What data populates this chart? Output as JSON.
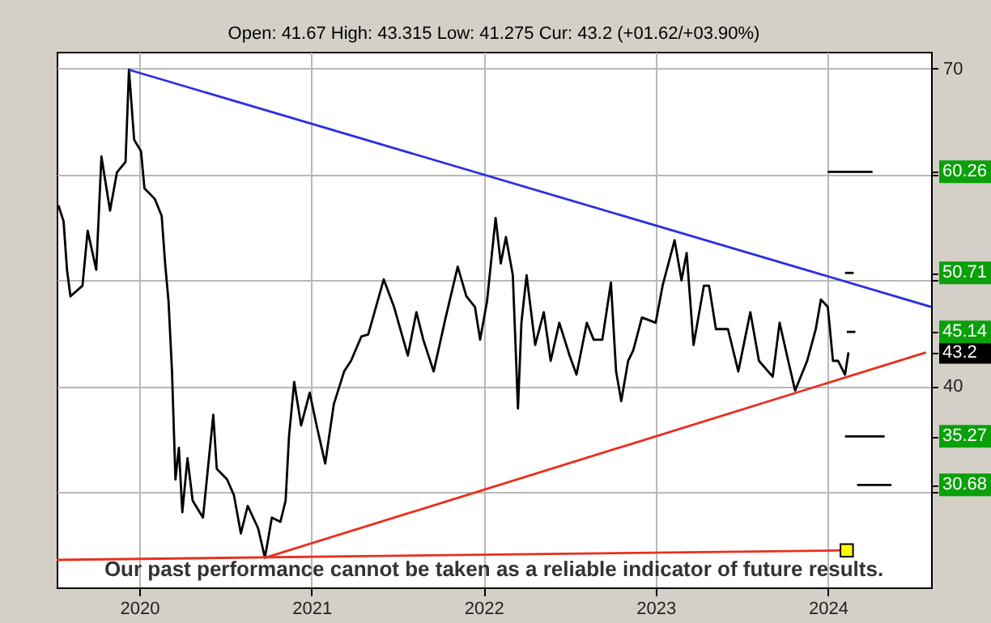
{
  "chart_data": {
    "type": "line",
    "title": "Open: 41.67 High: 43.315 Low: 41.275 Cur: 43.2 (+01.62/+03.90%)",
    "annotations": [
      "Our past performance cannot be taken as a reliable indicator of future results."
    ],
    "xlim": [
      2019.52,
      2024.6
    ],
    "xticks": [
      2020,
      2021,
      2022,
      2023,
      2024
    ],
    "ylim": [
      21,
      71.6
    ],
    "yticks": [
      {
        "value": 30,
        "label": null
      },
      {
        "value": 30.68,
        "label": "30.68"
      },
      {
        "value": 35.27,
        "label": "35.27"
      },
      40,
      {
        "value": 43.2,
        "label": "43.2"
      },
      {
        "value": 45.14,
        "label": "45.14"
      },
      {
        "value": 50,
        "label": null
      },
      {
        "value": 50.71,
        "label": "50.71"
      },
      {
        "value": 60,
        "label": null
      },
      {
        "value": 60.26,
        "label": "60.26"
      },
      70
    ],
    "grid": true,
    "marker": "none",
    "line_style": "solid",
    "series": [
      {
        "color": "#000000",
        "x": [
          2019.53,
          2019.56,
          2019.58,
          2019.6,
          2019.67,
          2019.7,
          2019.75,
          2019.78,
          2019.83,
          2019.87,
          2019.92,
          2019.94,
          2019.97,
          2020.01,
          2020.03,
          2020.09,
          2020.13,
          2020.15,
          2020.17,
          2020.19,
          2020.21,
          2020.23,
          2020.25,
          2020.28,
          2020.31,
          2020.37,
          2020.43,
          2020.45,
          2020.51,
          2020.55,
          2020.59,
          2020.63,
          2020.69,
          2020.73,
          2020.77,
          2020.82,
          2020.85,
          2020.87,
          2020.9,
          2020.94,
          2020.99,
          2021.03,
          2021.08,
          2021.13,
          2021.19,
          2021.23,
          2021.29,
          2021.33,
          2021.42,
          2021.48,
          2021.56,
          2021.61,
          2021.65,
          2021.71,
          2021.78,
          2021.85,
          2021.9,
          2021.95,
          2021.98,
          2022.02,
          2022.07,
          2022.1,
          2022.13,
          2022.17,
          2022.2,
          2022.22,
          2022.25,
          2022.3,
          2022.35,
          2022.39,
          2022.44,
          2022.5,
          2022.54,
          2022.6,
          2022.64,
          2022.69,
          2022.74,
          2022.77,
          2022.8,
          2022.84,
          2022.87,
          2022.92,
          2023.0,
          2023.04,
          2023.11,
          2023.15,
          2023.18,
          2023.22,
          2023.28,
          2023.31,
          2023.35,
          2023.42,
          2023.48,
          2023.55,
          2023.6,
          2023.68,
          2023.72,
          2023.77,
          2023.81,
          2023.88,
          2023.93,
          2023.96,
          2024.0,
          2024.03,
          2024.06,
          2024.1,
          2024.12
        ],
        "values": [
          57.1,
          55.6,
          51.0,
          48.5,
          49.5,
          54.7,
          51.0,
          61.7,
          56.6,
          60.2,
          61.2,
          69.9,
          63.3,
          62.2,
          58.7,
          57.7,
          56.1,
          51.6,
          48.0,
          41.4,
          31.2,
          34.2,
          28.1,
          33.2,
          29.2,
          27.6,
          37.3,
          32.2,
          31.2,
          29.7,
          26.1,
          28.7,
          26.6,
          23.8,
          27.6,
          27.2,
          29.2,
          35.3,
          40.4,
          36.3,
          39.4,
          36.3,
          32.7,
          38.3,
          41.4,
          42.4,
          44.7,
          44.9,
          50.1,
          47.5,
          42.9,
          47.0,
          44.4,
          41.4,
          46.5,
          51.3,
          48.5,
          47.5,
          44.4,
          48.0,
          55.9,
          51.6,
          54.1,
          50.5,
          37.9,
          46.0,
          50.5,
          43.9,
          47.0,
          42.4,
          46.0,
          42.9,
          41.1,
          46.0,
          44.4,
          44.4,
          49.8,
          41.4,
          38.6,
          42.4,
          43.4,
          46.5,
          46.0,
          49.5,
          53.8,
          50.0,
          52.6,
          43.9,
          49.5,
          49.5,
          45.4,
          45.4,
          41.4,
          47.0,
          42.4,
          40.9,
          46.0,
          42.4,
          39.6,
          42.4,
          45.4,
          48.2,
          47.5,
          42.4,
          42.4,
          41.1,
          43.2
        ]
      },
      {
        "color": "#2e2ee0",
        "x": [
          2019.94,
          2024.6
        ],
        "values": [
          69.9,
          47.5
        ]
      },
      {
        "color": "#e8301e",
        "x": [
          2020.73,
          2024.57
        ],
        "values": [
          23.8,
          43.2
        ]
      },
      {
        "color": "#e8301e",
        "x": [
          2019.52,
          2024.11
        ],
        "values": [
          23.6,
          24.5
        ]
      },
      {
        "type": "scatter",
        "marker": "square",
        "color": "#ffff00",
        "x": [
          2024.11
        ],
        "values": [
          24.5
        ]
      },
      {
        "color": "#000000",
        "x": [
          2024.0,
          2024.26
        ],
        "values": [
          60.26,
          60.26
        ]
      },
      {
        "color": "#000000",
        "x": [
          2024.1,
          2024.15
        ],
        "values": [
          50.71,
          50.71
        ]
      },
      {
        "color": "#000000",
        "x": [
          2024.11,
          2024.16
        ],
        "values": [
          45.14,
          45.14
        ]
      },
      {
        "color": "#000000",
        "x": [
          2024.1,
          2024.33
        ],
        "values": [
          35.27,
          35.27
        ]
      },
      {
        "color": "#000000",
        "x": [
          2024.17,
          2024.37
        ],
        "values": [
          30.68,
          30.68
        ]
      }
    ]
  }
}
